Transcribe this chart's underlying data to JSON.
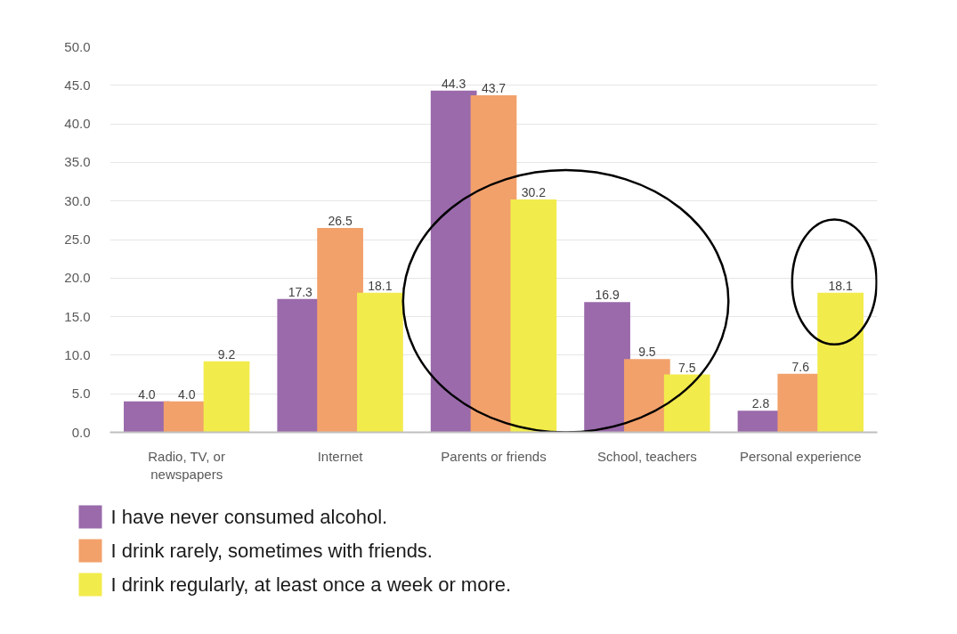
{
  "chart_data": {
    "type": "bar",
    "categories": [
      "Radio, TV, or newspapers",
      "Internet",
      "Parents or friends",
      "School, teachers",
      "Personal experience"
    ],
    "series": [
      {
        "name": "I have never consumed alcohol.",
        "color": "#9a6aab",
        "values": [
          4.0,
          17.3,
          44.3,
          16.9,
          2.8
        ],
        "value_labels": [
          "4.0",
          "17.3",
          "44.3",
          "16.9",
          "2.8"
        ]
      },
      {
        "name": "I drink rarely, sometimes with friends.",
        "color": "#f2a16b",
        "values": [
          4.0,
          26.5,
          43.7,
          9.5,
          7.6
        ],
        "value_labels": [
          "4.0",
          "26.5",
          "43.7",
          "9.5",
          "7.6"
        ]
      },
      {
        "name": "I drink regularly, at least once a week or more.",
        "color": "#f2eb4c",
        "values": [
          9.2,
          18.1,
          30.2,
          7.5,
          18.1
        ],
        "value_labels": [
          "9.2",
          "18.1",
          "30.2",
          "7.5",
          "18.1"
        ]
      }
    ],
    "ylim": [
      0,
      50
    ],
    "yticks": [
      {
        "value": 0,
        "label": "0.0"
      },
      {
        "value": 5,
        "label": "5.0"
      },
      {
        "value": 10,
        "label": "10.0"
      },
      {
        "value": 15,
        "label": "15.0"
      },
      {
        "value": 20,
        "label": "20.0"
      },
      {
        "value": 25,
        "label": "25.0"
      },
      {
        "value": 30,
        "label": "30.0"
      },
      {
        "value": 35,
        "label": "35.0"
      },
      {
        "value": 40,
        "label": "40.0"
      },
      {
        "value": 45,
        "label": "45.0"
      },
      {
        "value": 50,
        "label": "50.0"
      }
    ],
    "grid": "y",
    "legend": "bottom"
  }
}
